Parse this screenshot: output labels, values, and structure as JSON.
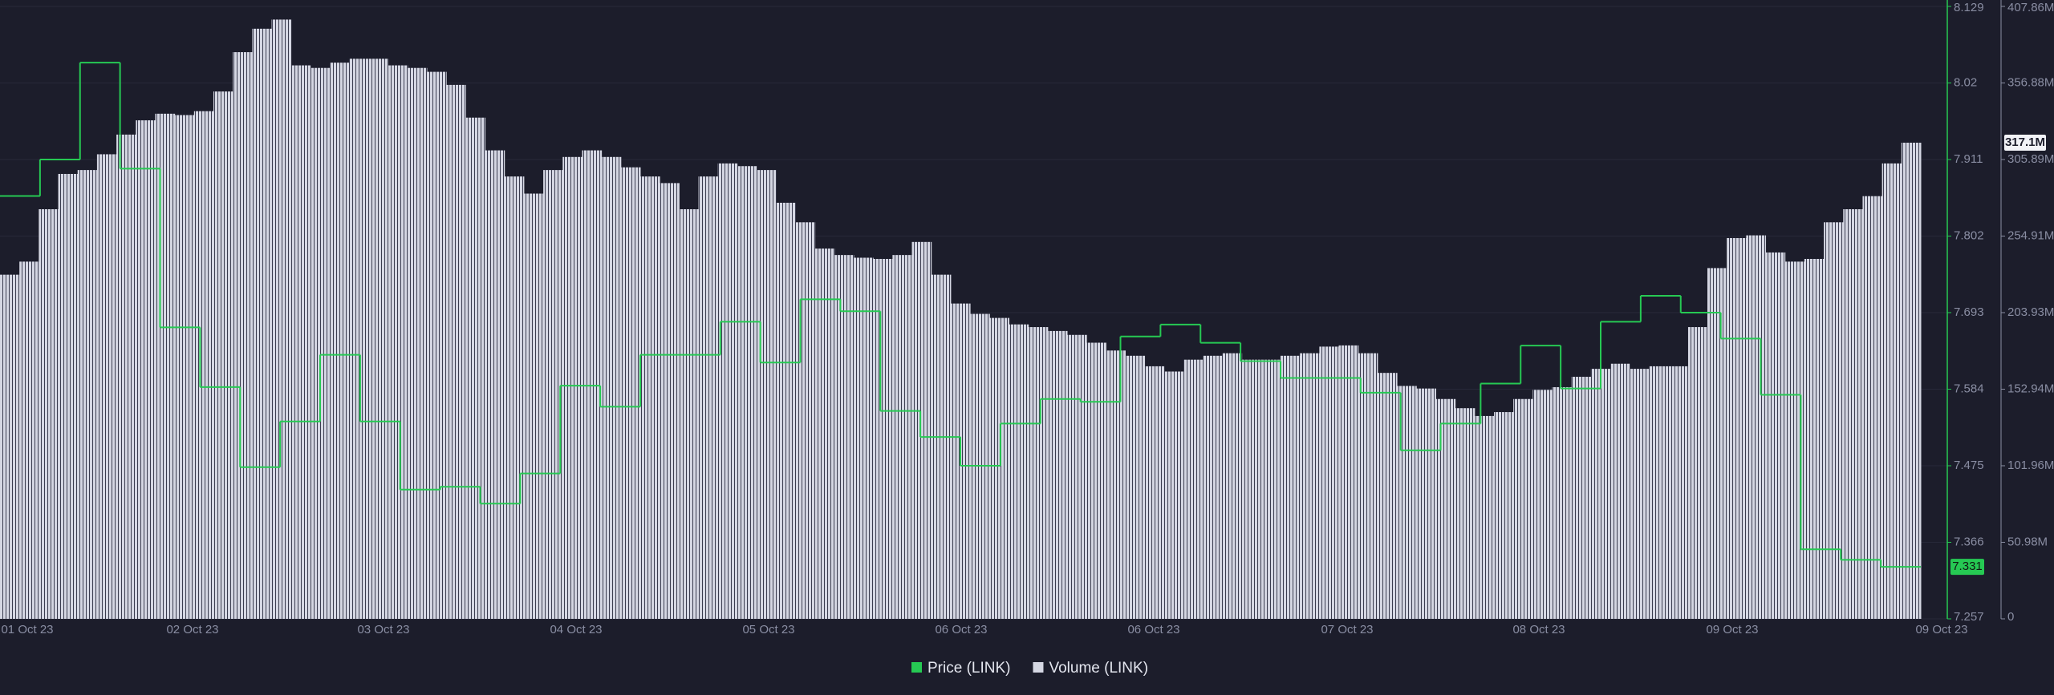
{
  "chart_data": {
    "type": "combo",
    "x_labels": [
      "01 Oct 23",
      "02 Oct 23",
      "03 Oct 23",
      "04 Oct 23",
      "05 Oct 23",
      "06 Oct 23",
      "06 Oct 23",
      "07 Oct 23",
      "08 Oct 23",
      "09 Oct 23",
      "09 Oct 23"
    ],
    "ylim": [
      7.257,
      8.129
    ],
    "yticks": [
      7.257,
      7.366,
      7.475,
      7.584,
      7.693,
      7.802,
      7.911,
      8.02,
      8.129
    ],
    "y2lim": [
      0,
      407.86
    ],
    "y2ticks": [
      0,
      {
        "value": 50.98,
        "label": "50.98M"
      },
      {
        "value": 101.96,
        "label": "101.96M"
      },
      {
        "value": 152.94,
        "label": "152.94M"
      },
      {
        "value": 203.93,
        "label": "203.93M"
      },
      {
        "value": 254.91,
        "label": "254.91M"
      },
      {
        "value": 305.89,
        "label": "305.89M"
      },
      {
        "value": 356.88,
        "label": "356.88M"
      },
      {
        "value": 407.86,
        "label": "407.86M"
      }
    ],
    "grid": true,
    "series": [
      {
        "name": "Price (LINK)",
        "type": "step",
        "color": "#26c953",
        "values": [
          7.859,
          7.911,
          8.049,
          7.898,
          7.672,
          7.587,
          7.473,
          7.538,
          7.633,
          7.538,
          7.441,
          7.445,
          7.421,
          7.464,
          7.589,
          7.559,
          7.633,
          7.633,
          7.68,
          7.622,
          7.712,
          7.695,
          7.553,
          7.516,
          7.475,
          7.535,
          7.57,
          7.566,
          7.659,
          7.676,
          7.65,
          7.624,
          7.6,
          7.6,
          7.579,
          7.497,
          7.535,
          7.592,
          7.646,
          7.585,
          7.68,
          7.717,
          7.693,
          7.656,
          7.576,
          7.356,
          7.341,
          7.331
        ]
      },
      {
        "name": "Volume (LINK)",
        "type": "bar",
        "axis": "y2",
        "color": "#d5d7e3",
        "values": [
          229.2,
          237.9,
          272.8,
          296.3,
          298.9,
          309.4,
          322.5,
          332.0,
          336.4,
          335.5,
          338.1,
          351.2,
          377.4,
          393.0,
          399.1,
          368.6,
          366.9,
          370.4,
          373.0,
          373.0,
          368.6,
          366.9,
          364.3,
          355.6,
          333.8,
          312.0,
          294.6,
          283.2,
          298.9,
          307.6,
          312.0,
          307.6,
          300.7,
          294.6,
          290.2,
          272.8,
          294.6,
          303.3,
          301.5,
          298.9,
          277.1,
          264.1,
          246.6,
          242.3,
          240.5,
          239.7,
          242.3,
          251.0,
          229.2,
          210.0,
          203.1,
          200.4,
          196.1,
          194.3,
          191.7,
          189.1,
          183.9,
          178.7,
          175.2,
          168.2,
          164.7,
          172.6,
          175.2,
          176.9,
          172.6,
          172.6,
          175.2,
          176.9,
          181.3,
          182.1,
          176.9,
          163.8,
          155.1,
          153.4,
          146.4,
          140.3,
          135.1,
          137.7,
          146.4,
          152.5,
          154.3,
          161.2,
          166.5,
          169.9,
          166.5,
          168.2,
          168.2,
          194.3,
          233.6,
          253.6,
          255.4,
          244.0,
          237.9,
          239.7,
          264.1,
          272.8,
          281.5,
          303.3,
          317.1
        ],
        "last_label": "317.1M"
      }
    ]
  }
}
